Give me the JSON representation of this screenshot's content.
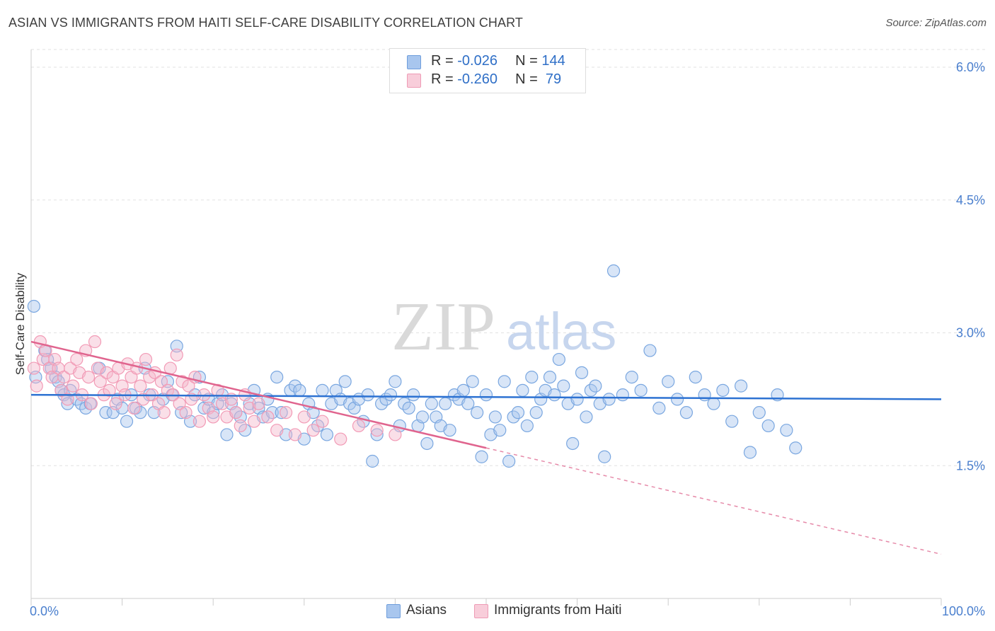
{
  "title": "ASIAN VS IMMIGRANTS FROM HAITI SELF-CARE DISABILITY CORRELATION CHART",
  "source": "Source: ZipAtlas.com",
  "watermark": {
    "zip": "ZIP",
    "atlas": "atlas"
  },
  "legend_stats": [
    {
      "r_label": "R =",
      "r_value": "-0.026",
      "n_label": "N =",
      "n_value": "144",
      "color": "#a8c6ee"
    },
    {
      "r_label": "R =",
      "r_value": "-0.260",
      "n_label": "N =",
      "n_value": " 79",
      "color": "#f5b8cb"
    }
  ],
  "chart_data": {
    "type": "scatter",
    "title": "ASIAN VS IMMIGRANTS FROM HAITI SELF-CARE DISABILITY CORRELATION CHART",
    "xlabel": "",
    "ylabel": "Self-Care Disability",
    "xlim": [
      0,
      100
    ],
    "ylim": [
      0,
      6.2
    ],
    "x_tick_labels": [
      "0.0%",
      "100.0%"
    ],
    "y_ticks": [
      1.5,
      3.0,
      4.5,
      6.0
    ],
    "y_tick_labels": [
      "1.5%",
      "3.0%",
      "4.5%",
      "6.0%"
    ],
    "grid": true,
    "legend_position": "bottom",
    "series": [
      {
        "name": "Asians",
        "color": "#7aa7e0",
        "trend": {
          "x0": 0,
          "y0": 2.3,
          "x1": 100,
          "y1": 2.25
        },
        "points": [
          [
            0.3,
            3.3
          ],
          [
            0.5,
            2.5
          ],
          [
            1.5,
            2.8
          ],
          [
            1.8,
            2.7
          ],
          [
            2.2,
            2.6
          ],
          [
            2.7,
            2.5
          ],
          [
            3,
            2.45
          ],
          [
            3.3,
            2.35
          ],
          [
            3.6,
            2.3
          ],
          [
            4,
            2.2
          ],
          [
            4.3,
            2.35
          ],
          [
            5,
            2.25
          ],
          [
            5.5,
            2.2
          ],
          [
            6,
            2.15
          ],
          [
            6.5,
            2.2
          ],
          [
            7.5,
            2.6
          ],
          [
            8.2,
            2.1
          ],
          [
            9,
            2.1
          ],
          [
            9.5,
            2.25
          ],
          [
            10,
            2.15
          ],
          [
            10.5,
            2
          ],
          [
            11,
            2.3
          ],
          [
            11.5,
            2.15
          ],
          [
            12,
            2.1
          ],
          [
            12.5,
            2.6
          ],
          [
            13,
            2.3
          ],
          [
            13.5,
            2.1
          ],
          [
            14.5,
            2.25
          ],
          [
            15,
            2.45
          ],
          [
            15.5,
            2.3
          ],
          [
            16,
            2.85
          ],
          [
            16.5,
            2.1
          ],
          [
            17.5,
            2
          ],
          [
            18,
            2.3
          ],
          [
            18.5,
            2.5
          ],
          [
            19,
            2.15
          ],
          [
            19.5,
            2.25
          ],
          [
            20,
            2.1
          ],
          [
            20.5,
            2.2
          ],
          [
            21,
            2.3
          ],
          [
            21.5,
            1.85
          ],
          [
            22,
            2.2
          ],
          [
            22.5,
            2.1
          ],
          [
            23,
            2.05
          ],
          [
            23.5,
            1.9
          ],
          [
            24,
            2.2
          ],
          [
            24.5,
            2.35
          ],
          [
            25,
            2.15
          ],
          [
            25.5,
            2.05
          ],
          [
            26,
            2.25
          ],
          [
            26.5,
            2.1
          ],
          [
            27,
            2.5
          ],
          [
            27.5,
            2.1
          ],
          [
            28,
            1.85
          ],
          [
            28.5,
            2.35
          ],
          [
            29,
            2.4
          ],
          [
            29.5,
            2.35
          ],
          [
            30,
            1.8
          ],
          [
            30.5,
            2.2
          ],
          [
            31,
            2.1
          ],
          [
            31.5,
            1.95
          ],
          [
            32,
            2.35
          ],
          [
            32.5,
            1.85
          ],
          [
            33,
            2.2
          ],
          [
            33.5,
            2.35
          ],
          [
            34,
            2.25
          ],
          [
            34.5,
            2.45
          ],
          [
            35,
            2.2
          ],
          [
            35.5,
            2.15
          ],
          [
            36,
            2.25
          ],
          [
            36.5,
            2
          ],
          [
            37,
            2.3
          ],
          [
            37.5,
            1.55
          ],
          [
            38,
            1.85
          ],
          [
            38.5,
            2.2
          ],
          [
            39,
            2.25
          ],
          [
            39.5,
            2.3
          ],
          [
            40,
            2.45
          ],
          [
            40.5,
            1.95
          ],
          [
            41,
            2.2
          ],
          [
            41.5,
            2.15
          ],
          [
            42,
            2.3
          ],
          [
            42.5,
            1.95
          ],
          [
            43,
            2.05
          ],
          [
            43.5,
            1.75
          ],
          [
            44,
            2.2
          ],
          [
            44.5,
            2.05
          ],
          [
            45,
            1.95
          ],
          [
            45.5,
            2.2
          ],
          [
            46,
            1.9
          ],
          [
            46.5,
            2.3
          ],
          [
            47,
            2.25
          ],
          [
            47.5,
            2.35
          ],
          [
            48,
            2.2
          ],
          [
            48.5,
            2.45
          ],
          [
            49,
            2.1
          ],
          [
            49.5,
            1.6
          ],
          [
            50,
            2.3
          ],
          [
            50.5,
            1.85
          ],
          [
            51,
            2.05
          ],
          [
            51.5,
            1.9
          ],
          [
            52,
            2.45
          ],
          [
            52.5,
            1.55
          ],
          [
            53,
            2.05
          ],
          [
            53.5,
            2.1
          ],
          [
            54,
            2.35
          ],
          [
            54.5,
            1.95
          ],
          [
            55,
            2.5
          ],
          [
            55.5,
            2.1
          ],
          [
            56,
            2.25
          ],
          [
            56.5,
            2.35
          ],
          [
            57,
            2.5
          ],
          [
            57.5,
            2.3
          ],
          [
            58,
            2.7
          ],
          [
            58.5,
            2.4
          ],
          [
            59,
            2.2
          ],
          [
            59.5,
            1.75
          ],
          [
            60,
            2.25
          ],
          [
            60.5,
            2.55
          ],
          [
            61,
            2.05
          ],
          [
            61.5,
            2.35
          ],
          [
            62,
            2.4
          ],
          [
            62.5,
            2.2
          ],
          [
            63,
            1.6
          ],
          [
            63.5,
            2.25
          ],
          [
            64,
            3.7
          ],
          [
            65,
            2.3
          ],
          [
            66,
            2.5
          ],
          [
            67,
            2.35
          ],
          [
            68,
            2.8
          ],
          [
            69,
            2.15
          ],
          [
            70,
            2.45
          ],
          [
            71,
            2.25
          ],
          [
            72,
            2.1
          ],
          [
            73,
            2.5
          ],
          [
            74,
            2.3
          ],
          [
            75,
            2.2
          ],
          [
            76,
            2.35
          ],
          [
            77,
            2
          ],
          [
            78,
            2.4
          ],
          [
            79,
            1.65
          ],
          [
            80,
            2.1
          ],
          [
            81,
            1.95
          ],
          [
            82,
            2.3
          ],
          [
            83,
            1.9
          ],
          [
            84,
            1.7
          ]
        ]
      },
      {
        "name": "Immigrants from Haiti",
        "color": "#f29bb6",
        "trend": {
          "x0": 0,
          "y0": 2.9,
          "x1": 50,
          "y1": 1.7,
          "dash_to_x": 100,
          "dash_to_y": 0.5
        },
        "points": [
          [
            0.3,
            2.6
          ],
          [
            0.6,
            2.4
          ],
          [
            1,
            2.9
          ],
          [
            1.3,
            2.7
          ],
          [
            1.6,
            2.8
          ],
          [
            2,
            2.6
          ],
          [
            2.3,
            2.5
          ],
          [
            2.6,
            2.7
          ],
          [
            3,
            2.6
          ],
          [
            3.3,
            2.35
          ],
          [
            3.6,
            2.5
          ],
          [
            4,
            2.25
          ],
          [
            4.3,
            2.6
          ],
          [
            4.6,
            2.4
          ],
          [
            5,
            2.7
          ],
          [
            5.3,
            2.55
          ],
          [
            5.6,
            2.3
          ],
          [
            6,
            2.8
          ],
          [
            6.3,
            2.5
          ],
          [
            6.6,
            2.2
          ],
          [
            7,
            2.9
          ],
          [
            7.3,
            2.6
          ],
          [
            7.6,
            2.45
          ],
          [
            8,
            2.3
          ],
          [
            8.3,
            2.55
          ],
          [
            8.6,
            2.35
          ],
          [
            9,
            2.5
          ],
          [
            9.3,
            2.2
          ],
          [
            9.6,
            2.6
          ],
          [
            10,
            2.4
          ],
          [
            10.3,
            2.3
          ],
          [
            10.6,
            2.65
          ],
          [
            11,
            2.5
          ],
          [
            11.3,
            2.15
          ],
          [
            11.6,
            2.6
          ],
          [
            12,
            2.4
          ],
          [
            12.3,
            2.25
          ],
          [
            12.6,
            2.7
          ],
          [
            13,
            2.5
          ],
          [
            13.3,
            2.3
          ],
          [
            13.6,
            2.55
          ],
          [
            14,
            2.2
          ],
          [
            14.3,
            2.45
          ],
          [
            14.6,
            2.1
          ],
          [
            15,
            2.35
          ],
          [
            15.3,
            2.6
          ],
          [
            15.6,
            2.3
          ],
          [
            16,
            2.75
          ],
          [
            16.3,
            2.2
          ],
          [
            16.6,
            2.45
          ],
          [
            17,
            2.1
          ],
          [
            17.3,
            2.4
          ],
          [
            17.6,
            2.25
          ],
          [
            18,
            2.5
          ],
          [
            18.5,
            2
          ],
          [
            19,
            2.3
          ],
          [
            19.5,
            2.15
          ],
          [
            20,
            2.05
          ],
          [
            20.5,
            2.35
          ],
          [
            21,
            2.2
          ],
          [
            21.5,
            2.05
          ],
          [
            22,
            2.25
          ],
          [
            22.5,
            2.1
          ],
          [
            23,
            1.95
          ],
          [
            23.5,
            2.3
          ],
          [
            24,
            2.15
          ],
          [
            24.5,
            2
          ],
          [
            25,
            2.2
          ],
          [
            26,
            2.05
          ],
          [
            27,
            1.9
          ],
          [
            28,
            2.1
          ],
          [
            29,
            1.85
          ],
          [
            30,
            2.05
          ],
          [
            31,
            1.9
          ],
          [
            32,
            2
          ],
          [
            34,
            1.8
          ],
          [
            36,
            1.95
          ],
          [
            38,
            1.9
          ],
          [
            40,
            1.85
          ]
        ]
      }
    ]
  }
}
